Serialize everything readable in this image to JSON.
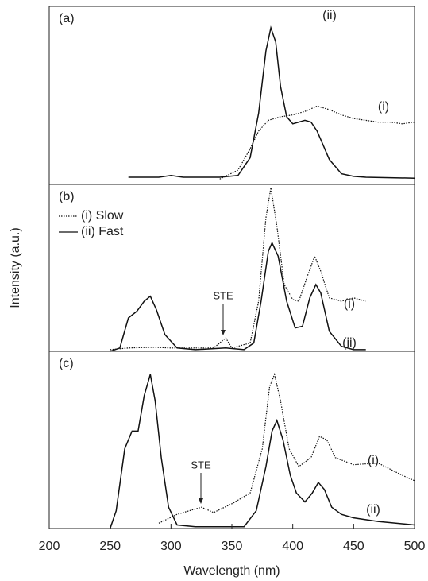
{
  "chart_data": [
    {
      "type": "line",
      "label": "(a)",
      "xlim": [
        200,
        500
      ],
      "ylim": [
        0,
        1
      ],
      "color": "#111",
      "series": [
        {
          "style": "dotted",
          "x": [
            340,
            355,
            365,
            372,
            380,
            390,
            400,
            410,
            420,
            430,
            440,
            450,
            460,
            470,
            480,
            490,
            500
          ],
          "values": [
            0.03,
            0.08,
            0.2,
            0.3,
            0.36,
            0.38,
            0.39,
            0.41,
            0.44,
            0.42,
            0.39,
            0.37,
            0.36,
            0.35,
            0.35,
            0.34,
            0.35
          ]
        },
        {
          "style": "solid",
          "x": [
            265,
            290,
            300,
            310,
            340,
            355,
            365,
            372,
            378,
            382,
            386,
            390,
            395,
            400,
            405,
            410,
            415,
            420,
            425,
            430,
            440,
            450,
            460,
            500
          ],
          "values": [
            0.04,
            0.04,
            0.05,
            0.04,
            0.04,
            0.05,
            0.15,
            0.4,
            0.75,
            0.88,
            0.8,
            0.55,
            0.38,
            0.34,
            0.35,
            0.36,
            0.35,
            0.3,
            0.22,
            0.14,
            0.06,
            0.045,
            0.04,
            0.035
          ]
        }
      ],
      "annotations": [
        "(ii)",
        "(i)"
      ]
    },
    {
      "type": "line",
      "label": "(b)",
      "xlim": [
        200,
        500
      ],
      "ylim": [
        0,
        1
      ],
      "color": "#111",
      "y_label": "Intensity (a.u.)",
      "series": [
        {
          "name": "(i) Slow",
          "style": "dotted",
          "x": [
            250,
            265,
            285,
            300,
            335,
            345,
            350,
            365,
            372,
            378,
            382,
            387,
            393,
            400,
            405,
            412,
            418,
            423,
            430,
            440,
            450,
            460
          ],
          "values": [
            0.01,
            0.02,
            0.025,
            0.02,
            0.02,
            0.08,
            0.02,
            0.05,
            0.3,
            0.8,
            0.98,
            0.75,
            0.4,
            0.31,
            0.3,
            0.45,
            0.57,
            0.48,
            0.32,
            0.3,
            0.32,
            0.3
          ]
        },
        {
          "name": "(ii) Fast",
          "style": "solid",
          "x": [
            250,
            258,
            265,
            272,
            278,
            283,
            288,
            295,
            305,
            320,
            345,
            360,
            368,
            374,
            380,
            383,
            388,
            395,
            402,
            408,
            414,
            419,
            423,
            430,
            440,
            450,
            460
          ],
          "values": [
            0,
            0.02,
            0.2,
            0.24,
            0.3,
            0.33,
            0.25,
            0.1,
            0.02,
            0.01,
            0.02,
            0.01,
            0.05,
            0.3,
            0.6,
            0.65,
            0.57,
            0.3,
            0.14,
            0.15,
            0.32,
            0.4,
            0.35,
            0.12,
            0.03,
            0.01,
            0.01
          ]
        }
      ],
      "annotations": [
        "STE",
        "(i)",
        "(ii)"
      ]
    },
    {
      "type": "line",
      "label": "(c)",
      "xlim": [
        200,
        500
      ],
      "ylim": [
        0,
        1
      ],
      "color": "#111",
      "x_label": "Wavelength (nm)",
      "xticks": [
        200,
        250,
        300,
        350,
        400,
        450,
        500
      ],
      "series": [
        {
          "style": "dotted",
          "x": [
            290,
            305,
            315,
            325,
            335,
            350,
            365,
            375,
            381,
            385,
            390,
            397,
            405,
            415,
            422,
            428,
            435,
            450,
            470,
            490,
            500
          ],
          "values": [
            0.03,
            0.08,
            0.1,
            0.12,
            0.09,
            0.14,
            0.2,
            0.45,
            0.8,
            0.87,
            0.72,
            0.45,
            0.35,
            0.4,
            0.52,
            0.5,
            0.4,
            0.36,
            0.37,
            0.3,
            0.27
          ]
        },
        {
          "style": "solid",
          "x": [
            250,
            255,
            262,
            268,
            273,
            278,
            283,
            287,
            292,
            298,
            305,
            320,
            360,
            370,
            378,
            383,
            387,
            392,
            398,
            403,
            410,
            416,
            421,
            426,
            432,
            440,
            450,
            470,
            500
          ],
          "values": [
            0,
            0.1,
            0.45,
            0.55,
            0.55,
            0.75,
            0.87,
            0.72,
            0.4,
            0.12,
            0.02,
            0.01,
            0.01,
            0.1,
            0.35,
            0.55,
            0.61,
            0.5,
            0.3,
            0.2,
            0.15,
            0.2,
            0.26,
            0.22,
            0.12,
            0.08,
            0.06,
            0.04,
            0.02
          ]
        }
      ],
      "annotations": [
        "STE",
        "(i)",
        "(ii)"
      ]
    }
  ]
}
